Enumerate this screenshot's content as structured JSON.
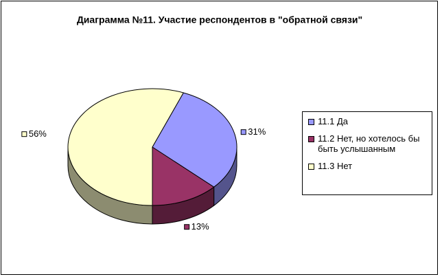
{
  "chart_data": {
    "type": "pie",
    "title": "Диаграмма №11. Участие респондентов в \"обратной связи\"",
    "categories": [
      "11.1 Да",
      "11.2 Нет, но хотелось бы быть услышанным",
      "11.3 Нет"
    ],
    "values": [
      31,
      13,
      56
    ],
    "value_labels": [
      "31%",
      "13%",
      "56%"
    ],
    "colors": [
      "#9999ff",
      "#993366",
      "#ffffcc"
    ],
    "legend": "right"
  }
}
